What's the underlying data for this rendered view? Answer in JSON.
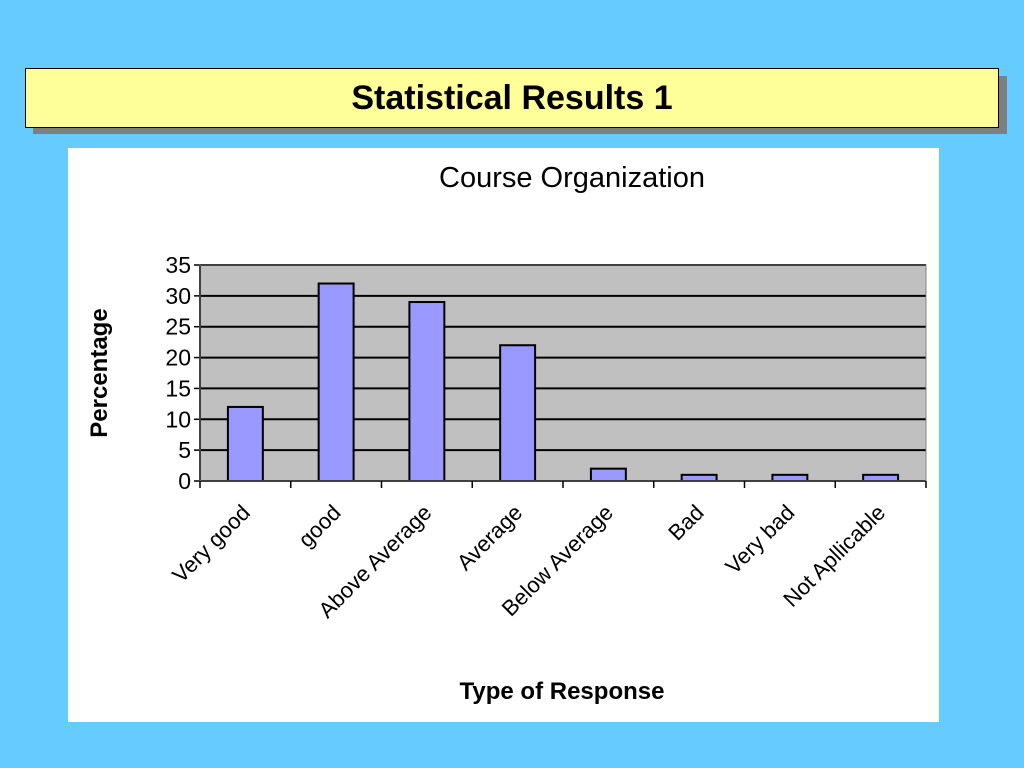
{
  "slide": {
    "title": "Statistical Results 1"
  },
  "chart_data": {
    "type": "bar",
    "title": "Course Organization",
    "xlabel": "Type of Response",
    "ylabel": "Percentage",
    "categories": [
      "Very good",
      "good",
      "Above Average",
      "Average",
      "Below Average",
      "Bad",
      "Very bad",
      "Not Apllicable"
    ],
    "values": [
      12,
      32,
      29,
      22,
      2,
      1,
      1,
      1
    ],
    "ylim": [
      0,
      35
    ],
    "yticks": [
      "0",
      "5",
      "10",
      "15",
      "20",
      "25",
      "30",
      "35"
    ],
    "grid": true,
    "legend": "none",
    "colors": {
      "bar": "#9999ff",
      "plot_background": "#c0c0c0",
      "gridline": "#000000"
    }
  }
}
